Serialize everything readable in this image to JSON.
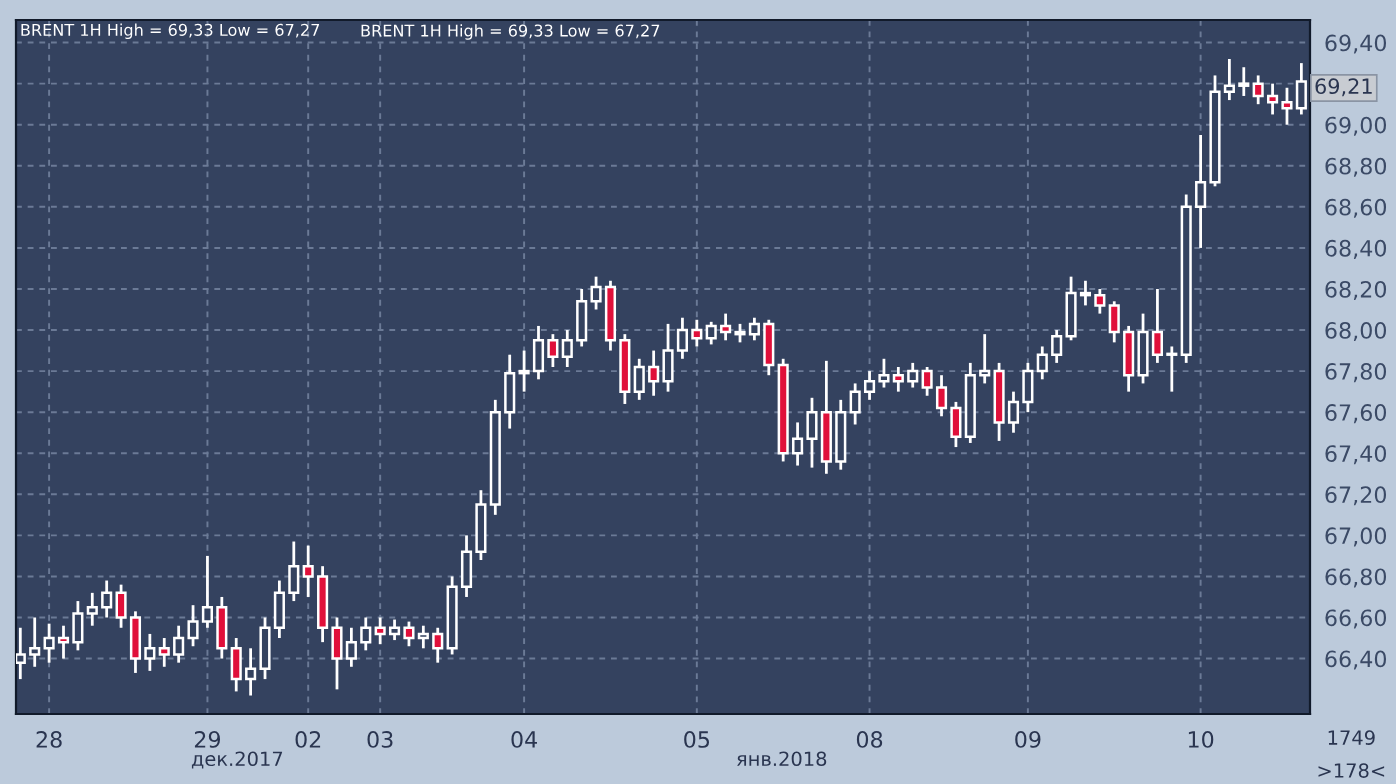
{
  "chart_data": {
    "type": "candlestick",
    "title": "BRENT 1H High = 69,33 Low = 67,27",
    "categories": [
      null,
      null,
      "28",
      null,
      null,
      null,
      null,
      null,
      null,
      null,
      null,
      null,
      null,
      "29",
      null,
      null,
      null,
      null,
      null,
      null,
      "02",
      null,
      null,
      null,
      null,
      "03",
      null,
      null,
      null,
      null,
      null,
      null,
      null,
      null,
      null,
      "04",
      null,
      null,
      null,
      null,
      null,
      null,
      null,
      null,
      null,
      null,
      null,
      "05",
      null,
      null,
      null,
      null,
      null,
      null,
      null,
      null,
      null,
      null,
      null,
      "08",
      null,
      null,
      null,
      null,
      null,
      null,
      null,
      null,
      null,
      null,
      "09",
      null,
      null,
      null,
      null,
      null,
      null,
      null,
      null,
      null,
      null,
      null,
      "10",
      null,
      null,
      null,
      null,
      null,
      null,
      null
    ],
    "ohlc": [
      [
        66.38,
        66.55,
        66.3,
        66.42
      ],
      [
        66.42,
        66.6,
        66.36,
        66.45
      ],
      [
        66.45,
        66.57,
        66.38,
        66.5
      ],
      [
        66.5,
        66.56,
        66.4,
        66.48
      ],
      [
        66.48,
        66.68,
        66.44,
        66.62
      ],
      [
        66.62,
        66.72,
        66.56,
        66.65
      ],
      [
        66.65,
        66.78,
        66.6,
        66.72
      ],
      [
        66.72,
        66.76,
        66.55,
        66.6
      ],
      [
        66.6,
        66.63,
        66.33,
        66.4
      ],
      [
        66.4,
        66.52,
        66.34,
        66.45
      ],
      [
        66.45,
        66.5,
        66.36,
        66.42
      ],
      [
        66.42,
        66.56,
        66.38,
        66.5
      ],
      [
        66.5,
        66.66,
        66.46,
        66.58
      ],
      [
        66.58,
        66.9,
        66.55,
        66.65
      ],
      [
        66.65,
        66.7,
        66.4,
        66.45
      ],
      [
        66.45,
        66.5,
        66.24,
        66.3
      ],
      [
        66.3,
        66.45,
        66.22,
        66.35
      ],
      [
        66.35,
        66.6,
        66.3,
        66.55
      ],
      [
        66.55,
        66.78,
        66.5,
        66.72
      ],
      [
        66.72,
        66.97,
        66.68,
        66.85
      ],
      [
        66.85,
        66.95,
        66.7,
        66.8
      ],
      [
        66.8,
        66.85,
        66.48,
        66.55
      ],
      [
        66.55,
        66.6,
        66.25,
        66.4
      ],
      [
        66.4,
        66.55,
        66.36,
        66.48
      ],
      [
        66.48,
        66.6,
        66.44,
        66.55
      ],
      [
        66.55,
        66.6,
        66.47,
        66.52
      ],
      [
        66.52,
        66.59,
        66.49,
        66.55
      ],
      [
        66.55,
        66.58,
        66.46,
        66.5
      ],
      [
        66.5,
        66.56,
        66.45,
        66.52
      ],
      [
        66.52,
        66.55,
        66.38,
        66.45
      ],
      [
        66.45,
        66.8,
        66.42,
        66.75
      ],
      [
        66.75,
        67.0,
        66.7,
        66.92
      ],
      [
        66.92,
        67.22,
        66.88,
        67.15
      ],
      [
        67.15,
        67.66,
        67.1,
        67.6
      ],
      [
        67.6,
        67.88,
        67.52,
        67.79
      ],
      [
        67.79,
        67.9,
        67.7,
        67.8
      ],
      [
        67.8,
        68.02,
        67.76,
        67.95
      ],
      [
        67.95,
        67.98,
        67.82,
        67.87
      ],
      [
        67.87,
        68.0,
        67.82,
        67.95
      ],
      [
        67.95,
        68.2,
        67.92,
        68.14
      ],
      [
        68.14,
        68.26,
        68.1,
        68.21
      ],
      [
        68.21,
        68.24,
        67.9,
        67.95
      ],
      [
        67.95,
        67.98,
        67.64,
        67.7
      ],
      [
        67.7,
        67.86,
        67.66,
        67.82
      ],
      [
        67.82,
        67.9,
        67.68,
        67.75
      ],
      [
        67.75,
        68.03,
        67.7,
        67.9
      ],
      [
        67.9,
        68.06,
        67.86,
        68.0
      ],
      [
        68.0,
        68.05,
        67.92,
        67.96
      ],
      [
        67.96,
        68.04,
        67.93,
        68.02
      ],
      [
        68.02,
        68.08,
        67.95,
        67.99
      ],
      [
        67.99,
        68.03,
        67.94,
        67.98
      ],
      [
        67.98,
        68.06,
        67.95,
        68.03
      ],
      [
        68.03,
        68.05,
        67.78,
        67.83
      ],
      [
        67.83,
        67.86,
        67.36,
        67.4
      ],
      [
        67.4,
        67.55,
        67.34,
        67.47
      ],
      [
        67.47,
        67.67,
        67.33,
        67.6
      ],
      [
        67.6,
        67.85,
        67.3,
        67.36
      ],
      [
        67.36,
        67.66,
        67.32,
        67.6
      ],
      [
        67.6,
        67.74,
        67.54,
        67.7
      ],
      [
        67.7,
        67.8,
        67.66,
        67.75
      ],
      [
        67.75,
        67.86,
        67.72,
        67.78
      ],
      [
        67.78,
        67.82,
        67.7,
        67.75
      ],
      [
        67.75,
        67.84,
        67.72,
        67.8
      ],
      [
        67.8,
        67.82,
        67.68,
        67.72
      ],
      [
        67.72,
        67.78,
        67.58,
        67.62
      ],
      [
        67.62,
        67.65,
        67.43,
        67.48
      ],
      [
        67.48,
        67.84,
        67.45,
        67.78
      ],
      [
        67.78,
        67.98,
        67.74,
        67.8
      ],
      [
        67.8,
        67.84,
        67.46,
        67.55
      ],
      [
        67.55,
        67.7,
        67.5,
        67.65
      ],
      [
        67.65,
        67.84,
        67.6,
        67.8
      ],
      [
        67.8,
        67.92,
        67.76,
        67.88
      ],
      [
        67.88,
        68.0,
        67.84,
        67.97
      ],
      [
        67.97,
        68.26,
        67.95,
        68.18
      ],
      [
        68.18,
        68.24,
        68.12,
        68.17
      ],
      [
        68.17,
        68.2,
        68.08,
        68.12
      ],
      [
        68.12,
        68.14,
        67.94,
        67.99
      ],
      [
        67.99,
        68.02,
        67.7,
        67.78
      ],
      [
        67.78,
        68.08,
        67.74,
        67.99
      ],
      [
        67.99,
        68.2,
        67.84,
        67.88
      ],
      [
        67.88,
        67.92,
        67.7,
        67.88
      ],
      [
        67.88,
        68.66,
        67.84,
        68.6
      ],
      [
        68.6,
        68.95,
        68.4,
        68.72
      ],
      [
        68.72,
        69.24,
        68.7,
        69.16
      ],
      [
        69.16,
        69.32,
        69.12,
        69.19
      ],
      [
        69.19,
        69.28,
        69.14,
        69.2
      ],
      [
        69.2,
        69.24,
        69.1,
        69.14
      ],
      [
        69.14,
        69.2,
        69.05,
        69.11
      ],
      [
        69.11,
        69.18,
        69.0,
        69.08
      ],
      [
        69.08,
        69.3,
        69.05,
        69.21
      ]
    ],
    "ylim": [
      66.13,
      69.51
    ],
    "yticks": [
      {
        "value": 66.4,
        "label": "66,40"
      },
      {
        "value": 66.6,
        "label": "66,60"
      },
      {
        "value": 66.8,
        "label": "66,80"
      },
      {
        "value": 67.0,
        "label": "67,00"
      },
      {
        "value": 67.2,
        "label": "67,20"
      },
      {
        "value": 67.4,
        "label": "67,40"
      },
      {
        "value": 67.6,
        "label": "67,60"
      },
      {
        "value": 67.8,
        "label": "67,80"
      },
      {
        "value": 68.0,
        "label": "68,00"
      },
      {
        "value": 68.2,
        "label": "68,20"
      },
      {
        "value": 68.4,
        "label": "68,40"
      },
      {
        "value": 68.6,
        "label": "68,60"
      },
      {
        "value": 68.8,
        "label": "68,80"
      },
      {
        "value": 69.0,
        "label": "69,00"
      },
      {
        "value": 69.2,
        "label": null
      },
      {
        "value": 69.4,
        "label": "69,40"
      }
    ],
    "grid": true,
    "annotations": [
      "BRENT 1H High = 69,33 Low = 67,27",
      "69,21",
      "дек.2017",
      "янв.2018",
      "1749",
      ">178<"
    ]
  }
}
